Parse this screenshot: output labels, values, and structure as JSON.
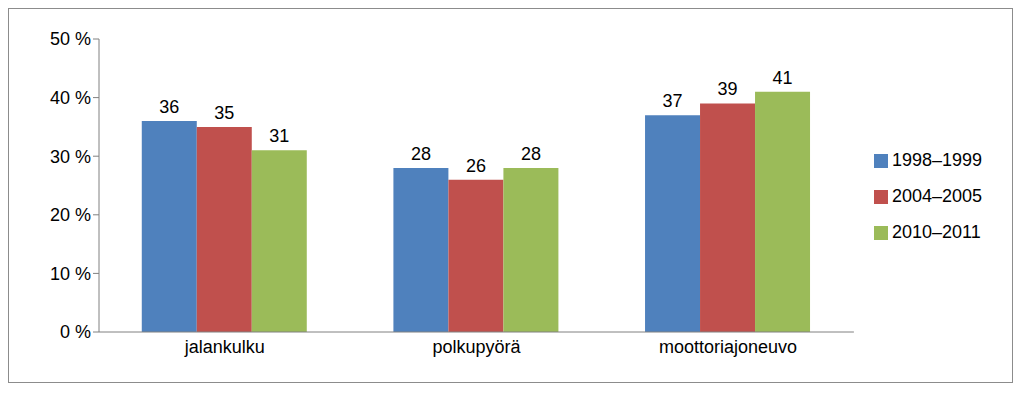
{
  "chart_data": {
    "type": "bar",
    "categories": [
      "jalankulku",
      "polkupyörä",
      "moottoriajoneuvo"
    ],
    "series": [
      {
        "name": "1998–1999",
        "color": "#4f81bd",
        "values": [
          36,
          28,
          37
        ]
      },
      {
        "name": "2004–2005",
        "color": "#c0504d",
        "values": [
          35,
          26,
          39
        ]
      },
      {
        "name": "2010–2011",
        "color": "#9bbb59",
        "values": [
          31,
          28,
          41
        ]
      }
    ],
    "ylim": [
      0,
      50
    ],
    "yticks": [
      {
        "value": 0,
        "label": "0 %"
      },
      {
        "value": 10,
        "label": "10 %"
      },
      {
        "value": 20,
        "label": "20 %"
      },
      {
        "value": 30,
        "label": "30 %"
      },
      {
        "value": 40,
        "label": "40 %"
      },
      {
        "value": 50,
        "label": "50 %"
      }
    ],
    "grid": false,
    "legend": "right",
    "data_labels": true
  }
}
